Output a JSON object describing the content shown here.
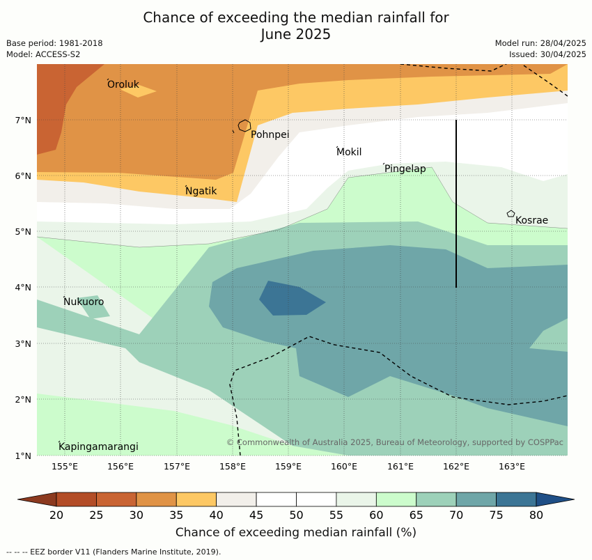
{
  "title_line1": "Chance of exceeding the median rainfall for",
  "title_line2": "June 2025",
  "base_period": "Base period: 1981-2018",
  "model": "Model: ACCESS-S2",
  "model_run": "Model run: 28/04/2025",
  "issued": "Issued: 30/04/2025",
  "lon_ticks": [
    "155°E",
    "156°E",
    "157°E",
    "158°E",
    "159°E",
    "160°E",
    "161°E",
    "162°E",
    "163°E"
  ],
  "lat_ticks": [
    "7°N",
    "6°N",
    "5°N",
    "4°N",
    "3°N",
    "2°N",
    "1°N"
  ],
  "places": [
    {
      "name": "Oroluk"
    },
    {
      "name": "Pohnpei"
    },
    {
      "name": "Mokil"
    },
    {
      "name": "Pingelap"
    },
    {
      "name": "Ngatik"
    },
    {
      "name": "Kosrae"
    },
    {
      "name": "Nukuoro"
    },
    {
      "name": "Kapingamarangi"
    }
  ],
  "credit": "© Commonwealth of Australia 2025, Bureau of Meteorology, supported by COSPPac",
  "colorbar": {
    "ticks": [
      "20",
      "25",
      "30",
      "35",
      "40",
      "45",
      "50",
      "55",
      "60",
      "65",
      "70",
      "75",
      "80"
    ],
    "colors": [
      "#b34d27",
      "#c96433",
      "#e09346",
      "#fdc864",
      "#f2efea",
      "#ffffff",
      "#ffffff",
      "#eaf5e9",
      "#ccfccc",
      "#9dd1b9",
      "#6fa6a8",
      "#3c7595"
    ],
    "under_color": "#8c3a1f",
    "over_color": "#1f4f86",
    "label": "Chance of exceeding median rainfall (%)"
  },
  "footnote": "--  --  -- EEZ border V11 (Flanders Marine Institute, 2019).",
  "colors": {
    "background": "#fdfefb"
  }
}
